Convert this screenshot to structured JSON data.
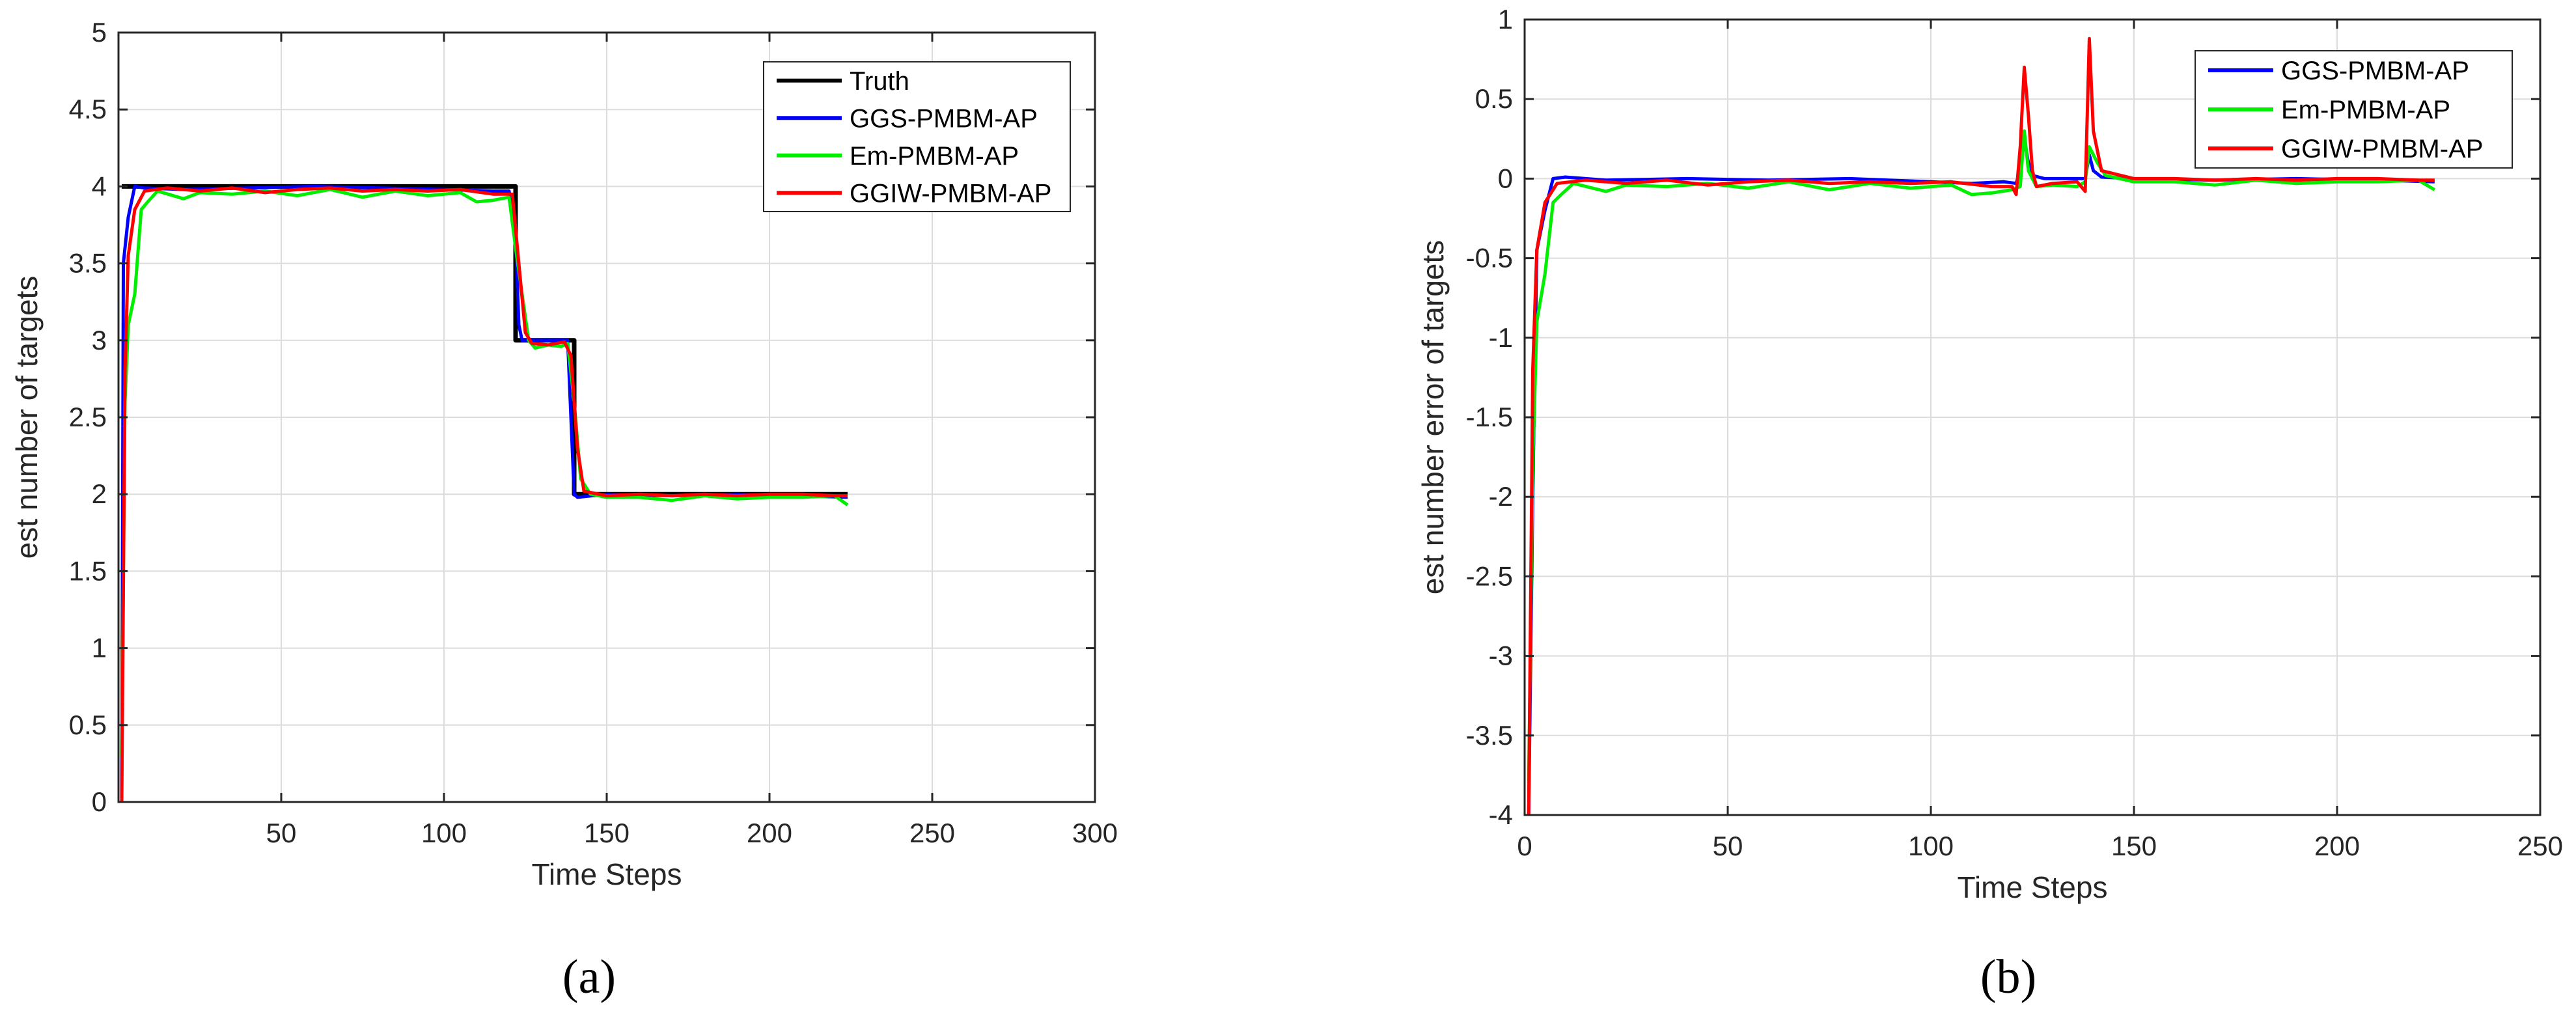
{
  "chart_data": [
    {
      "type": "line",
      "panel_label": "(a)",
      "panel_letter": "a",
      "xlabel": "Time Steps",
      "ylabel": "est number of targets",
      "xlim": [
        0,
        300
      ],
      "ylim": [
        0,
        5
      ],
      "xticks": [
        50,
        100,
        150,
        200,
        250,
        300
      ],
      "yticks": [
        0,
        0.5,
        1,
        1.5,
        2,
        2.5,
        3,
        3.5,
        4,
        4.5,
        5
      ],
      "grid": true,
      "legend_position": "top-right",
      "series": [
        {
          "name": "Truth",
          "color": "#000000",
          "points": [
            [
              1,
              4
            ],
            [
              122,
              4
            ],
            [
              122,
              3
            ],
            [
              140,
              3
            ],
            [
              140,
              2
            ],
            [
              224,
              2
            ]
          ]
        },
        {
          "name": "GGS-PMBM-AP",
          "color": "#0000ff",
          "points": [
            [
              1,
              0
            ],
            [
              1.5,
              3.5
            ],
            [
              3,
              3.8
            ],
            [
              5,
              4.0
            ],
            [
              8,
              3.99
            ],
            [
              20,
              3.98
            ],
            [
              40,
              3.99
            ],
            [
              60,
              4.0
            ],
            [
              80,
              3.99
            ],
            [
              100,
              3.98
            ],
            [
              115,
              3.97
            ],
            [
              120,
              3.97
            ],
            [
              122,
              3.7
            ],
            [
              123,
              3.1
            ],
            [
              124,
              3.0
            ],
            [
              130,
              3.0
            ],
            [
              138,
              3.0
            ],
            [
              139,
              2.5
            ],
            [
              140,
              2.0
            ],
            [
              141,
              1.98
            ],
            [
              150,
              2.0
            ],
            [
              170,
              1.99
            ],
            [
              190,
              2.0
            ],
            [
              210,
              1.99
            ],
            [
              224,
              1.98
            ]
          ]
        },
        {
          "name": "Em-PMBM-AP",
          "color": "#00ee00",
          "points": [
            [
              1,
              0.3
            ],
            [
              2,
              2.6
            ],
            [
              3,
              3.1
            ],
            [
              5,
              3.3
            ],
            [
              7,
              3.85
            ],
            [
              9,
              3.9
            ],
            [
              12,
              3.97
            ],
            [
              20,
              3.92
            ],
            [
              25,
              3.96
            ],
            [
              35,
              3.95
            ],
            [
              45,
              3.97
            ],
            [
              55,
              3.94
            ],
            [
              65,
              3.98
            ],
            [
              75,
              3.93
            ],
            [
              85,
              3.97
            ],
            [
              95,
              3.94
            ],
            [
              105,
              3.96
            ],
            [
              110,
              3.9
            ],
            [
              115,
              3.91
            ],
            [
              120,
              3.93
            ],
            [
              122,
              3.6
            ],
            [
              124,
              3.3
            ],
            [
              126,
              3.0
            ],
            [
              128,
              2.95
            ],
            [
              132,
              2.97
            ],
            [
              136,
              2.96
            ],
            [
              138,
              2.98
            ],
            [
              140,
              2.6
            ],
            [
              142,
              2.1
            ],
            [
              145,
              2.0
            ],
            [
              150,
              1.98
            ],
            [
              160,
              1.98
            ],
            [
              170,
              1.96
            ],
            [
              180,
              1.99
            ],
            [
              190,
              1.97
            ],
            [
              200,
              1.98
            ],
            [
              210,
              1.98
            ],
            [
              220,
              1.99
            ],
            [
              224,
              1.93
            ]
          ]
        },
        {
          "name": "GGIW-PMBM-AP",
          "color": "#ff0000",
          "points": [
            [
              1,
              0
            ],
            [
              2,
              2.8
            ],
            [
              3,
              3.55
            ],
            [
              5,
              3.85
            ],
            [
              8,
              3.97
            ],
            [
              15,
              3.99
            ],
            [
              25,
              3.97
            ],
            [
              35,
              3.99
            ],
            [
              45,
              3.96
            ],
            [
              55,
              3.98
            ],
            [
              65,
              3.99
            ],
            [
              75,
              3.97
            ],
            [
              85,
              3.98
            ],
            [
              95,
              3.97
            ],
            [
              105,
              3.98
            ],
            [
              115,
              3.95
            ],
            [
              121,
              3.95
            ],
            [
              123,
              3.5
            ],
            [
              125,
              3.05
            ],
            [
              127,
              2.98
            ],
            [
              132,
              2.97
            ],
            [
              137,
              2.99
            ],
            [
              139,
              2.9
            ],
            [
              141,
              2.3
            ],
            [
              143,
              2.02
            ],
            [
              150,
              1.99
            ],
            [
              160,
              2.0
            ],
            [
              170,
              1.99
            ],
            [
              180,
              2.0
            ],
            [
              190,
              1.99
            ],
            [
              200,
              2.0
            ],
            [
              210,
              2.0
            ],
            [
              220,
              1.99
            ],
            [
              224,
              1.99
            ]
          ]
        }
      ]
    },
    {
      "type": "line",
      "panel_label": "(b)",
      "panel_letter": "b",
      "xlabel": "Time Steps",
      "ylabel": "est number error of targets",
      "xlim": [
        0,
        250
      ],
      "ylim": [
        -4,
        1
      ],
      "xticks": [
        0,
        50,
        100,
        150,
        200,
        250
      ],
      "yticks": [
        -4,
        -3.5,
        -3,
        -2.5,
        -2,
        -1.5,
        -1,
        -0.5,
        0,
        0.5,
        1
      ],
      "grid": true,
      "legend_position": "top-right",
      "series": [
        {
          "name": "GGS-PMBM-AP",
          "color": "#0000ff",
          "points": [
            [
              1,
              -4
            ],
            [
              2,
              -2.0
            ],
            [
              3,
              -0.45
            ],
            [
              5,
              -0.2
            ],
            [
              7,
              0.0
            ],
            [
              10,
              0.01
            ],
            [
              20,
              -0.01
            ],
            [
              40,
              0.0
            ],
            [
              60,
              -0.01
            ],
            [
              80,
              0.0
            ],
            [
              100,
              -0.02
            ],
            [
              110,
              -0.03
            ],
            [
              118,
              -0.02
            ],
            [
              121,
              -0.03
            ],
            [
              122,
              0.05
            ],
            [
              123,
              0.25
            ],
            [
              124,
              0.1
            ],
            [
              125,
              0.02
            ],
            [
              128,
              0.0
            ],
            [
              135,
              0.0
            ],
            [
              138,
              0.0
            ],
            [
              139,
              0.15
            ],
            [
              140,
              0.05
            ],
            [
              142,
              0.01
            ],
            [
              150,
              0.0
            ],
            [
              170,
              -0.01
            ],
            [
              190,
              0.0
            ],
            [
              210,
              -0.01
            ],
            [
              224,
              -0.02
            ]
          ]
        },
        {
          "name": "Em-PMBM-AP",
          "color": "#00ee00",
          "points": [
            [
              1,
              -3.8
            ],
            [
              2,
              -1.8
            ],
            [
              3,
              -0.9
            ],
            [
              5,
              -0.6
            ],
            [
              7,
              -0.15
            ],
            [
              9,
              -0.1
            ],
            [
              12,
              -0.03
            ],
            [
              20,
              -0.08
            ],
            [
              25,
              -0.04
            ],
            [
              35,
              -0.05
            ],
            [
              45,
              -0.03
            ],
            [
              55,
              -0.06
            ],
            [
              65,
              -0.02
            ],
            [
              75,
              -0.07
            ],
            [
              85,
              -0.03
            ],
            [
              95,
              -0.06
            ],
            [
              105,
              -0.04
            ],
            [
              110,
              -0.1
            ],
            [
              115,
              -0.09
            ],
            [
              120,
              -0.07
            ],
            [
              122,
              -0.05
            ],
            [
              123,
              0.3
            ],
            [
              124,
              0.05
            ],
            [
              126,
              -0.05
            ],
            [
              130,
              -0.04
            ],
            [
              136,
              -0.05
            ],
            [
              138,
              -0.02
            ],
            [
              139,
              0.2
            ],
            [
              141,
              0.1
            ],
            [
              143,
              0.02
            ],
            [
              150,
              -0.02
            ],
            [
              160,
              -0.02
            ],
            [
              170,
              -0.04
            ],
            [
              180,
              -0.01
            ],
            [
              190,
              -0.03
            ],
            [
              200,
              -0.02
            ],
            [
              210,
              -0.02
            ],
            [
              220,
              -0.01
            ],
            [
              224,
              -0.07
            ]
          ]
        },
        {
          "name": "GGIW-PMBM-AP",
          "color": "#ff0000",
          "points": [
            [
              1,
              -4
            ],
            [
              2,
              -1.2
            ],
            [
              3,
              -0.45
            ],
            [
              5,
              -0.15
            ],
            [
              8,
              -0.03
            ],
            [
              15,
              -0.01
            ],
            [
              25,
              -0.03
            ],
            [
              35,
              -0.01
            ],
            [
              45,
              -0.04
            ],
            [
              55,
              -0.02
            ],
            [
              65,
              -0.01
            ],
            [
              75,
              -0.03
            ],
            [
              85,
              -0.02
            ],
            [
              95,
              -0.03
            ],
            [
              105,
              -0.02
            ],
            [
              115,
              -0.05
            ],
            [
              120,
              -0.05
            ],
            [
              121,
              -0.1
            ],
            [
              122,
              0.2
            ],
            [
              123,
              0.7
            ],
            [
              124,
              0.4
            ],
            [
              125,
              0.05
            ],
            [
              126,
              -0.05
            ],
            [
              130,
              -0.03
            ],
            [
              136,
              -0.02
            ],
            [
              138,
              -0.08
            ],
            [
              139,
              0.88
            ],
            [
              140,
              0.3
            ],
            [
              142,
              0.05
            ],
            [
              150,
              0.0
            ],
            [
              160,
              0.0
            ],
            [
              170,
              -0.01
            ],
            [
              180,
              0.0
            ],
            [
              190,
              -0.01
            ],
            [
              200,
              0.0
            ],
            [
              210,
              0.0
            ],
            [
              220,
              -0.01
            ],
            [
              224,
              -0.01
            ]
          ]
        }
      ]
    }
  ]
}
